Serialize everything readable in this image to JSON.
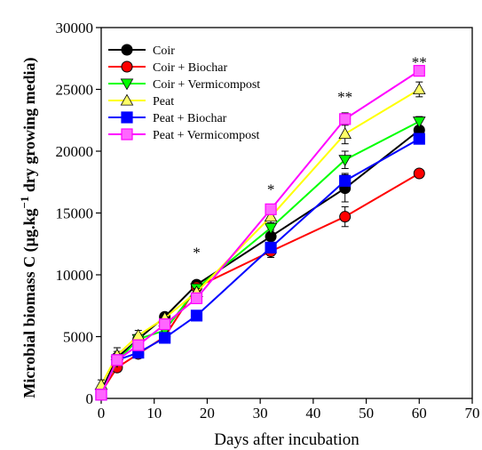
{
  "chart_data": {
    "type": "line",
    "xlabel": "Days after incubation",
    "ylabel_main": "Microbial biomass C (µg.kg",
    "ylabel_sup": "−1",
    "ylabel_rest": " dry growing media)",
    "xlim": [
      0,
      70
    ],
    "ylim": [
      0,
      30000
    ],
    "xticks": [
      0,
      10,
      20,
      30,
      40,
      50,
      60,
      70
    ],
    "yticks": [
      0,
      5000,
      10000,
      15000,
      20000,
      25000,
      30000
    ],
    "grid": false,
    "legend_position": "top-left",
    "x": [
      0,
      3,
      7,
      12,
      18,
      32,
      46,
      60
    ],
    "series": [
      {
        "name": "Coir",
        "marker": "circle",
        "color": "#000000",
        "fill": "#000000",
        "values": [
          600,
          3300,
          4800,
          6600,
          9200,
          13100,
          17000,
          21700
        ],
        "errors": [
          300,
          500,
          400,
          300,
          300,
          500,
          1100,
          700
        ]
      },
      {
        "name": "Coir + Biochar",
        "marker": "circle",
        "color": "#ff0000",
        "fill": "#ff0000",
        "values": [
          500,
          2500,
          3600,
          5000,
          9000,
          11900,
          14700,
          18200
        ],
        "errors": [
          300,
          300,
          300,
          400,
          300,
          500,
          800,
          300
        ]
      },
      {
        "name": "Coir + Vermicompost",
        "marker": "triangle-down",
        "color": "#00ff00",
        "fill": "#00ff00",
        "values": [
          400,
          3000,
          4800,
          5500,
          8900,
          13800,
          19300,
          22400
        ],
        "errors": [
          200,
          300,
          300,
          400,
          300,
          400,
          700,
          400
        ]
      },
      {
        "name": "Peat",
        "marker": "triangle-up",
        "color": "#ffff00",
        "fill": "#ffff66",
        "values": [
          1100,
          3500,
          5100,
          6500,
          8600,
          14700,
          21400,
          25000
        ],
        "errors": [
          400,
          600,
          400,
          300,
          300,
          500,
          800,
          600
        ]
      },
      {
        "name": "Peat + Biochar",
        "marker": "square",
        "color": "#0000ff",
        "fill": "#0000ff",
        "values": [
          300,
          3100,
          3700,
          4900,
          6700,
          12200,
          17600,
          21000
        ],
        "errors": [
          200,
          300,
          300,
          400,
          300,
          400,
          600,
          400
        ]
      },
      {
        "name": "Peat + Vermicompost",
        "marker": "square",
        "color": "#ff00ff",
        "fill": "#ff66ff",
        "values": [
          300,
          3100,
          4300,
          6000,
          8100,
          15300,
          22600,
          26500
        ],
        "errors": [
          200,
          300,
          300,
          300,
          300,
          400,
          500,
          400
        ]
      }
    ],
    "annotations": [
      {
        "x": 18,
        "y": 11400,
        "text": "*"
      },
      {
        "x": 32,
        "y": 16500,
        "text": "*"
      },
      {
        "x": 46,
        "y": 24000,
        "text": "**"
      },
      {
        "x": 60,
        "y": 26800,
        "text": "**"
      }
    ]
  }
}
